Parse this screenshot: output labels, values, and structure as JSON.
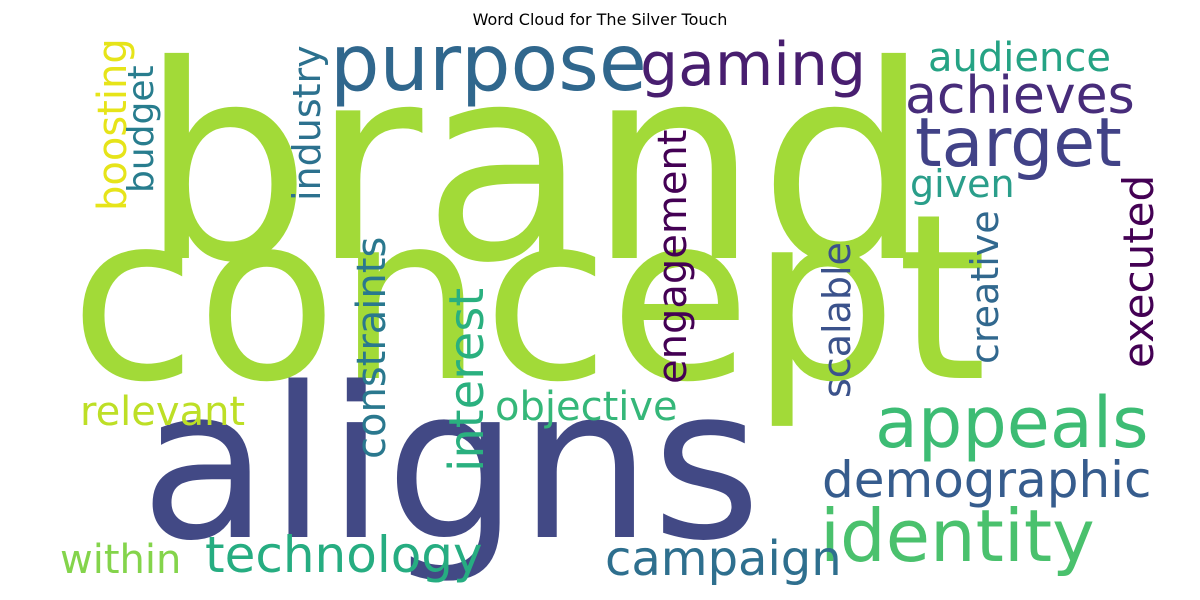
{
  "title": "Word Cloud for The Silver Touch",
  "words": [
    {
      "text": "brand",
      "color": "#a2da38"
    },
    {
      "text": "concept",
      "color": "#a2da38"
    },
    {
      "text": "aligns",
      "color": "#424985"
    },
    {
      "text": "purpose",
      "color": "#30678d"
    },
    {
      "text": "gaming",
      "color": "#481e6f"
    },
    {
      "text": "achieves",
      "color": "#472c7a"
    },
    {
      "text": "target",
      "color": "#414287"
    },
    {
      "text": "audience",
      "color": "#25a384"
    },
    {
      "text": "given",
      "color": "#2a9e8a"
    },
    {
      "text": "executed",
      "color": "#440154"
    },
    {
      "text": "creative",
      "color": "#31688e"
    },
    {
      "text": "appeals",
      "color": "#3dbc74"
    },
    {
      "text": "demographic",
      "color": "#365c8d"
    },
    {
      "text": "identity",
      "color": "#4ac16d"
    },
    {
      "text": "campaign",
      "color": "#2e6f8e"
    },
    {
      "text": "scalable",
      "color": "#3b528b"
    },
    {
      "text": "engagement",
      "color": "#440154"
    },
    {
      "text": "objective",
      "color": "#35b779"
    },
    {
      "text": "interest",
      "color": "#2ab07f"
    },
    {
      "text": "constraints",
      "color": "#2a788e"
    },
    {
      "text": "technology",
      "color": "#26ad81"
    },
    {
      "text": "within",
      "color": "#84d44b"
    },
    {
      "text": "relevant",
      "color": "#bddf26"
    },
    {
      "text": "boosting",
      "color": "#e6e419"
    },
    {
      "text": "budget",
      "color": "#287d8e"
    },
    {
      "text": "industry",
      "color": "#2c718e"
    }
  ]
}
